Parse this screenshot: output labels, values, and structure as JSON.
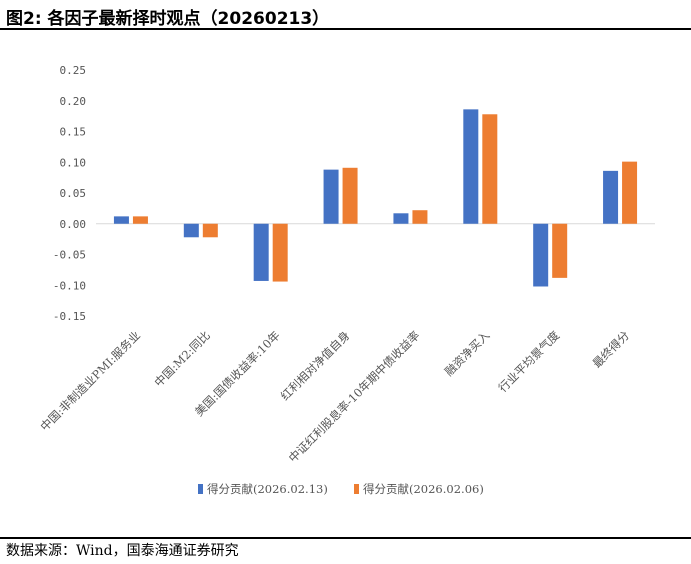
{
  "header": {
    "title": "图2:  各因子最新择时观点（20260213）"
  },
  "footer": {
    "source": "数据来源：Wind，国泰海通证券研究"
  },
  "colors": {
    "series1": "#4472C4",
    "series2": "#ED7D31",
    "axis": "#D9D9D9"
  },
  "chart_data": {
    "type": "bar",
    "title": "",
    "xlabel": "",
    "ylabel": "",
    "categories": [
      "中国:非制造业PMI:服务业",
      "中国:M2:同比",
      "美国:国债收益率:10年",
      "红利相对净值自身",
      "中证红利股息率-10年期中债收益率",
      "融资净买入",
      "行业平均景气度",
      "最终得分"
    ],
    "series": [
      {
        "name": "得分贡献(2026.02.13)",
        "values": [
          0.012,
          -0.022,
          -0.093,
          0.088,
          0.017,
          0.186,
          -0.102,
          0.086
        ]
      },
      {
        "name": "得分贡献(2026.02.06)",
        "values": [
          0.012,
          -0.022,
          -0.094,
          0.091,
          0.022,
          0.178,
          -0.088,
          0.101
        ]
      }
    ],
    "ylim": [
      -0.15,
      0.25
    ],
    "yticks": [
      "0.25",
      "0.20",
      "0.15",
      "0.10",
      "0.05",
      "0.00",
      "-0.05",
      "-0.10",
      "-0.15"
    ],
    "legend": "bottom",
    "grid": false
  }
}
